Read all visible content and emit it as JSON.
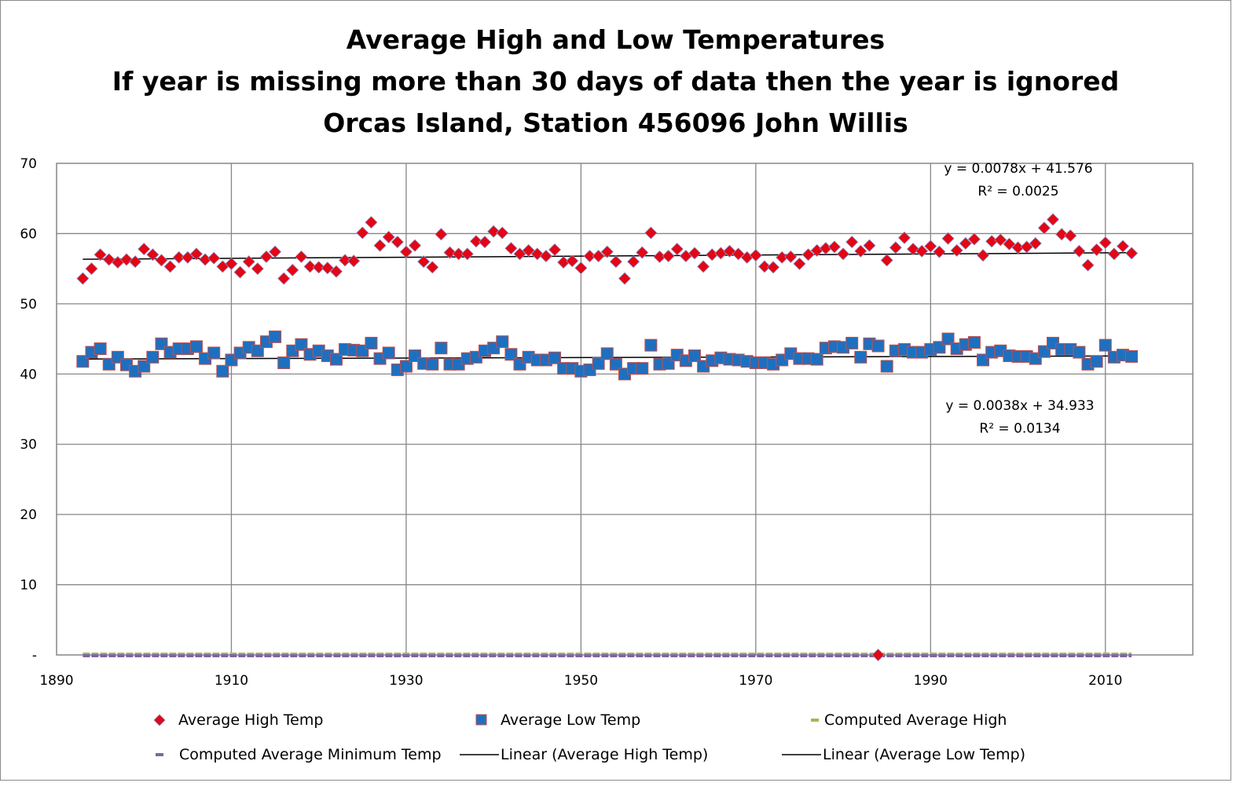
{
  "chart_data": {
    "type": "scatter",
    "title_lines": [
      "Average High and Low Temperatures",
      "If year is missing more than 30 days of data then the year is ignored",
      "Orcas Island, Station 456096 John Willis"
    ],
    "xlabel": "",
    "ylabel": "",
    "xlim": [
      1890,
      2020
    ],
    "ylim": [
      0,
      70
    ],
    "x_ticks": [
      "1890",
      "1910",
      "1930",
      "1950",
      "1970",
      "1990",
      "2010"
    ],
    "y_ticks": [
      "-",
      "10",
      "20",
      "30",
      "40",
      "50",
      "60",
      "70"
    ],
    "grid": true,
    "legend_position": "bottom",
    "series": [
      {
        "name": "Average High Temp",
        "marker": "diamond",
        "color": "#e30613",
        "border": "#8e8ec4",
        "x": [
          1893,
          1894,
          1895,
          1896,
          1897,
          1898,
          1899,
          1900,
          1901,
          1902,
          1903,
          1904,
          1905,
          1906,
          1907,
          1908,
          1909,
          1910,
          1911,
          1912,
          1913,
          1914,
          1915,
          1916,
          1917,
          1918,
          1919,
          1920,
          1921,
          1922,
          1923,
          1924,
          1925,
          1926,
          1927,
          1928,
          1929,
          1930,
          1931,
          1932,
          1933,
          1934,
          1935,
          1936,
          1937,
          1938,
          1939,
          1940,
          1941,
          1942,
          1943,
          1944,
          1945,
          1946,
          1947,
          1948,
          1949,
          1950,
          1951,
          1952,
          1953,
          1954,
          1955,
          1956,
          1957,
          1958,
          1959,
          1960,
          1961,
          1962,
          1963,
          1964,
          1965,
          1966,
          1967,
          1968,
          1969,
          1970,
          1971,
          1972,
          1973,
          1974,
          1975,
          1976,
          1977,
          1978,
          1979,
          1980,
          1981,
          1982,
          1983,
          1984,
          1985,
          1986,
          1987,
          1988,
          1989,
          1990,
          1991,
          1992,
          1993,
          1994,
          1995,
          1996,
          1997,
          1998,
          1999,
          2000,
          2001,
          2002,
          2003,
          2004,
          2005,
          2006,
          2007,
          2008,
          2009,
          2010,
          2011,
          2012,
          2013
        ],
        "y": [
          53.6,
          55.0,
          57.0,
          56.3,
          55.9,
          56.3,
          56.0,
          57.8,
          57.0,
          56.2,
          55.3,
          56.6,
          56.6,
          57.1,
          56.3,
          56.5,
          55.3,
          55.7,
          54.5,
          56.0,
          55.0,
          56.7,
          57.4,
          53.6,
          54.8,
          56.7,
          55.3,
          55.2,
          55.1,
          54.6,
          56.2,
          56.1,
          60.1,
          61.6,
          58.3,
          59.5,
          58.8,
          57.4,
          58.3,
          56.0,
          55.2,
          59.9,
          57.3,
          57.1,
          57.1,
          58.9,
          58.8,
          60.3,
          60.1,
          57.9,
          57.1,
          57.6,
          57.1,
          56.8,
          57.7,
          55.9,
          56.1,
          55.1,
          56.8,
          56.8,
          57.4,
          56.0,
          53.6,
          56.0,
          57.3,
          60.1,
          56.7,
          56.8,
          57.8,
          56.8,
          57.2,
          55.3,
          57.0,
          57.2,
          57.5,
          57.1,
          56.6,
          56.9,
          55.3,
          55.2,
          56.6,
          56.7,
          55.7,
          57.0,
          57.6,
          57.9,
          58.1,
          57.1,
          58.8,
          57.5,
          58.3,
          0,
          56.2,
          58.0,
          59.4,
          57.8,
          57.5,
          58.2,
          57.4,
          59.3,
          57.6,
          58.6,
          59.2,
          56.9,
          58.9,
          59.1,
          58.5,
          58.0,
          58.1,
          58.6,
          60.8,
          62.0,
          59.9,
          59.7,
          57.5,
          55.5,
          57.7,
          58.7,
          57.1,
          58.2,
          57.2
        ]
      },
      {
        "name": "Average Low Temp",
        "marker": "square",
        "color": "#1f6fbf",
        "border": "#c0504d",
        "x": [
          1893,
          1894,
          1895,
          1896,
          1897,
          1898,
          1899,
          1900,
          1901,
          1902,
          1903,
          1904,
          1905,
          1906,
          1907,
          1908,
          1909,
          1910,
          1911,
          1912,
          1913,
          1914,
          1915,
          1916,
          1917,
          1918,
          1919,
          1920,
          1921,
          1922,
          1923,
          1924,
          1925,
          1926,
          1927,
          1928,
          1929,
          1930,
          1931,
          1932,
          1933,
          1934,
          1935,
          1936,
          1937,
          1938,
          1939,
          1940,
          1941,
          1942,
          1943,
          1944,
          1945,
          1946,
          1947,
          1948,
          1949,
          1950,
          1951,
          1952,
          1953,
          1954,
          1955,
          1956,
          1957,
          1958,
          1959,
          1960,
          1961,
          1962,
          1963,
          1964,
          1965,
          1966,
          1967,
          1968,
          1969,
          1970,
          1971,
          1972,
          1973,
          1974,
          1975,
          1976,
          1977,
          1978,
          1979,
          1980,
          1981,
          1982,
          1983,
          1984,
          1985,
          1986,
          1987,
          1988,
          1989,
          1990,
          1991,
          1992,
          1993,
          1994,
          1995,
          1996,
          1997,
          1998,
          1999,
          2000,
          2001,
          2002,
          2003,
          2004,
          2005,
          2006,
          2007,
          2008,
          2009,
          2010,
          2011,
          2012,
          2013
        ],
        "y": [
          41.8,
          43.1,
          43.6,
          41.4,
          42.4,
          41.3,
          40.4,
          41.1,
          42.4,
          44.3,
          43.1,
          43.6,
          43.6,
          43.9,
          42.2,
          43.0,
          40.4,
          42.0,
          43.0,
          43.8,
          43.3,
          44.6,
          45.3,
          41.6,
          43.3,
          44.2,
          42.8,
          43.3,
          42.6,
          42.1,
          43.5,
          43.4,
          43.3,
          44.4,
          42.2,
          43.0,
          40.6,
          41.1,
          42.6,
          41.5,
          41.4,
          43.7,
          41.4,
          41.4,
          42.2,
          42.4,
          43.3,
          43.7,
          44.6,
          42.8,
          41.4,
          42.4,
          42.0,
          42.0,
          42.3,
          40.8,
          40.8,
          40.4,
          40.6,
          41.5,
          42.9,
          41.4,
          40.0,
          40.8,
          40.8,
          44.1,
          41.4,
          41.5,
          42.7,
          41.9,
          42.6,
          41.1,
          41.9,
          42.3,
          42.1,
          42.0,
          41.8,
          41.6,
          41.6,
          41.4,
          42.0,
          42.9,
          42.2,
          42.2,
          42.1,
          43.7,
          43.9,
          43.8,
          44.4,
          42.4,
          44.3,
          44.0,
          41.1,
          43.3,
          43.5,
          43.1,
          43.1,
          43.5,
          43.8,
          45.0,
          43.6,
          44.2,
          44.5,
          42.0,
          43.1,
          43.3,
          42.6,
          42.5,
          42.5,
          42.2,
          43.2,
          44.4,
          43.5,
          43.5,
          43.1,
          41.4,
          41.8,
          44.1,
          42.4,
          42.7,
          42.5
        ]
      },
      {
        "name": "Computed Average High",
        "marker": "dash",
        "color": "#9bbb59",
        "x": [
          1893,
          2013
        ],
        "y": [
          0,
          0
        ]
      },
      {
        "name": "Computed Average Minimum Temp",
        "marker": "dash",
        "color": "#8064a2",
        "x": [
          1893,
          2013
        ],
        "y": [
          0,
          0
        ]
      },
      {
        "name": "Linear (Average High Temp)",
        "marker": "line",
        "color": "#000000",
        "x": [
          1893,
          2013
        ],
        "y": [
          56.34,
          57.28
        ]
      },
      {
        "name": "Linear (Average Low Temp)",
        "marker": "line",
        "color": "#000000",
        "x": [
          1893,
          2013
        ],
        "y": [
          42.13,
          42.58
        ]
      }
    ],
    "annotations": [
      {
        "line1": "y = 0.0078x + 41.576",
        "line2": "R² = 0.0025"
      },
      {
        "line1": "y = 0.0038x + 34.933",
        "line2": "R² = 0.0134"
      }
    ]
  }
}
